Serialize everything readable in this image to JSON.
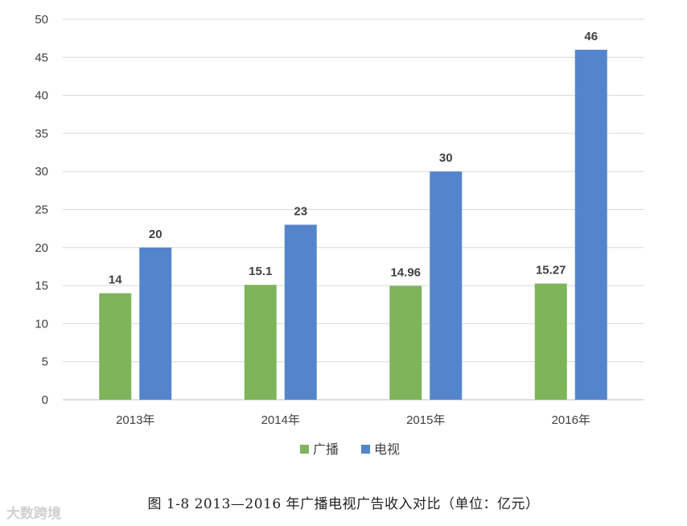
{
  "chart_data": {
    "type": "bar",
    "categories": [
      "2013年",
      "2014年",
      "2015年",
      "2016年"
    ],
    "series": [
      {
        "name": "广播",
        "values": [
          14,
          15.1,
          14.96,
          15.27
        ],
        "labels": [
          "14",
          "15.1",
          "14.96",
          "15.27"
        ]
      },
      {
        "name": "电视",
        "values": [
          20,
          23,
          30,
          46
        ],
        "labels": [
          "20",
          "23",
          "30",
          "46"
        ]
      }
    ],
    "colors": [
      "#7EB55B",
      "#5485CC"
    ],
    "ylim": [
      0,
      50
    ],
    "yticks": [
      "0",
      "5",
      "10",
      "15",
      "20",
      "25",
      "30",
      "35",
      "40",
      "45",
      "50"
    ],
    "grid": true,
    "legend_position": "bottom"
  },
  "caption": "图 1-8 2013—2016 年广播电视广告收入对比（单位：亿元）",
  "watermark": "大数跨境"
}
